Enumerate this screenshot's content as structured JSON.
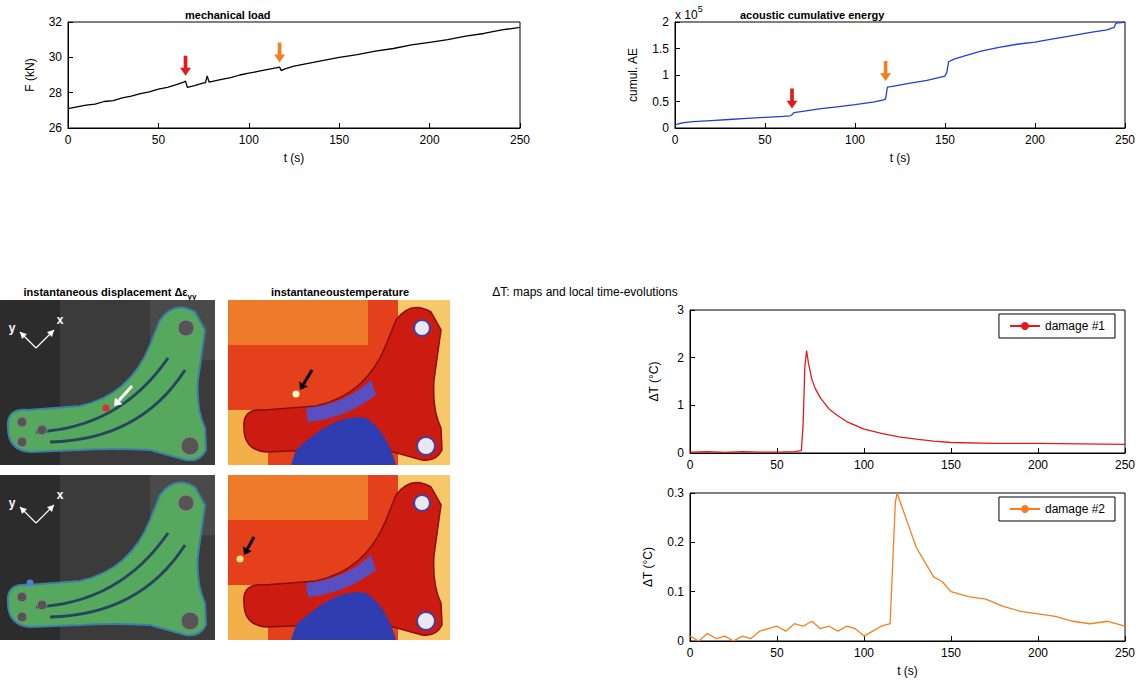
{
  "chart_data": [
    {
      "type": "line",
      "title": "mechanical load",
      "x_label": "t (s)",
      "y_label": "F (kN)",
      "xlim": [
        0,
        250
      ],
      "xticks": [
        0,
        50,
        100,
        150,
        200,
        250
      ],
      "ylim": [
        26,
        32
      ],
      "yticks": [
        26,
        28,
        30,
        32
      ],
      "color": "#000000",
      "x": [
        0,
        5,
        10,
        15,
        20,
        25,
        30,
        35,
        40,
        45,
        50,
        55,
        60,
        64,
        65,
        66,
        70,
        75,
        76,
        77,
        78,
        85,
        90,
        95,
        100,
        105,
        110,
        115,
        117,
        118,
        120,
        125,
        130,
        140,
        150,
        160,
        170,
        180,
        190,
        200,
        210,
        220,
        230,
        240,
        250
      ],
      "values": [
        27.1,
        27.2,
        27.3,
        27.35,
        27.5,
        27.55,
        27.7,
        27.8,
        27.95,
        28.05,
        28.2,
        28.3,
        28.45,
        28.6,
        28.65,
        28.3,
        28.4,
        28.55,
        28.55,
        28.95,
        28.6,
        28.75,
        28.85,
        29.0,
        29.1,
        29.2,
        29.3,
        29.4,
        29.45,
        29.25,
        29.35,
        29.5,
        29.6,
        29.8,
        30.0,
        30.15,
        30.35,
        30.5,
        30.7,
        30.85,
        31.0,
        31.2,
        31.35,
        31.55,
        31.7
      ],
      "arrows": [
        {
          "x": 65,
          "y": 28.85,
          "color": "#e3191c"
        },
        {
          "x": 117,
          "y": 29.6,
          "color": "#f57f20"
        }
      ]
    },
    {
      "type": "line",
      "title": "acoustic cumulative energy",
      "x_label": "t (s)",
      "y_label": "cumul. AE",
      "annotations": [
        {
          "text": "x 10",
          "superscript": "5"
        }
      ],
      "xlim": [
        0,
        250
      ],
      "xticks": [
        0,
        50,
        100,
        150,
        200,
        250
      ],
      "ylim": [
        0,
        2
      ],
      "yticks": [
        0,
        0.5,
        1,
        1.5,
        2
      ],
      "color": "#1f3fd8",
      "x": [
        0,
        2,
        5,
        10,
        20,
        30,
        40,
        50,
        60,
        64,
        65,
        66,
        70,
        80,
        90,
        100,
        110,
        116,
        117,
        118,
        120,
        130,
        140,
        150,
        151,
        152,
        155,
        160,
        170,
        180,
        190,
        200,
        210,
        220,
        230,
        240,
        244,
        245,
        248,
        250
      ],
      "values": [
        0.06,
        0.08,
        0.1,
        0.12,
        0.14,
        0.16,
        0.18,
        0.2,
        0.22,
        0.23,
        0.25,
        0.29,
        0.31,
        0.36,
        0.4,
        0.44,
        0.49,
        0.53,
        0.55,
        0.77,
        0.78,
        0.84,
        0.9,
        0.98,
        1.05,
        1.25,
        1.3,
        1.35,
        1.45,
        1.52,
        1.58,
        1.62,
        1.68,
        1.74,
        1.8,
        1.85,
        1.9,
        1.98,
        1.99,
        2.0
      ],
      "arrows": [
        {
          "x": 65,
          "y": 0.33,
          "color": "#e3191c"
        },
        {
          "x": 117,
          "y": 0.85,
          "color": "#f57f20"
        }
      ]
    },
    {
      "type": "line",
      "title": "ΔT: maps and local time-evolutions",
      "y_label": "ΔT (°C)",
      "xlim": [
        0,
        250
      ],
      "xticks": [
        0,
        50,
        100,
        150,
        200,
        250
      ],
      "ylim": [
        0,
        3
      ],
      "yticks": [
        0,
        1,
        2,
        3
      ],
      "legend": "upper right",
      "x": [
        0,
        10,
        20,
        30,
        40,
        50,
        60,
        64,
        65,
        66,
        67,
        68,
        70,
        72,
        75,
        80,
        85,
        90,
        100,
        110,
        120,
        130,
        140,
        150,
        175,
        200,
        225,
        250
      ],
      "series": [
        {
          "name": "damage #1",
          "color": "#e3191c",
          "values": [
            0.02,
            0.03,
            0.01,
            0.03,
            0.02,
            0.02,
            0.03,
            0.05,
            0.6,
            1.8,
            2.15,
            1.9,
            1.55,
            1.35,
            1.15,
            0.92,
            0.78,
            0.66,
            0.5,
            0.41,
            0.34,
            0.29,
            0.25,
            0.22,
            0.2,
            0.2,
            0.19,
            0.18
          ]
        }
      ]
    },
    {
      "type": "line",
      "x_label": "t (s)",
      "y_label": "ΔT (°C)",
      "xlim": [
        0,
        250
      ],
      "xticks": [
        0,
        50,
        100,
        150,
        200,
        250
      ],
      "ylim": [
        0,
        0.3
      ],
      "yticks": [
        0,
        0.1,
        0.2,
        0.3
      ],
      "legend": "upper right",
      "x": [
        0,
        5,
        10,
        15,
        20,
        25,
        30,
        35,
        40,
        45,
        50,
        55,
        60,
        65,
        70,
        75,
        80,
        85,
        90,
        95,
        100,
        105,
        110,
        115,
        118,
        119,
        120,
        122,
        125,
        130,
        135,
        140,
        145,
        150,
        160,
        170,
        180,
        190,
        200,
        210,
        220,
        230,
        240,
        250
      ],
      "series": [
        {
          "name": "damage #2",
          "color": "#f57f20",
          "values": [
            0.01,
            0.0,
            0.015,
            0.005,
            0.01,
            0.0,
            0.01,
            0.005,
            0.02,
            0.025,
            0.03,
            0.02,
            0.035,
            0.03,
            0.04,
            0.025,
            0.03,
            0.02,
            0.03,
            0.025,
            0.01,
            0.02,
            0.03,
            0.035,
            0.28,
            0.3,
            0.29,
            0.27,
            0.24,
            0.19,
            0.16,
            0.13,
            0.12,
            0.1,
            0.09,
            0.085,
            0.07,
            0.06,
            0.055,
            0.05,
            0.04,
            0.035,
            0.04,
            0.03
          ]
        }
      ]
    }
  ],
  "image_panels": [
    {
      "title": {
        "text": "instantaneous displacement Δε",
        "subscript": "yy"
      },
      "images": [
        {
          "axis_labels": [
            "y",
            "x"
          ],
          "arrow": true
        },
        {
          "axis_labels": [
            "y",
            "x"
          ],
          "arrow": false
        }
      ]
    },
    {
      "title": {
        "text": "instantaneoustemperature"
      },
      "images": [
        {
          "axis_labels": [],
          "arrow": true
        },
        {
          "axis_labels": [],
          "arrow": true
        }
      ]
    }
  ]
}
